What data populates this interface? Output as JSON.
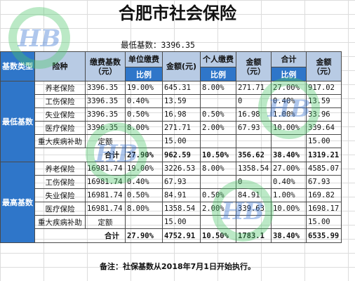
{
  "title": "合肥市社会保险",
  "min_base_label": "最低基数：3396.35",
  "header": {
    "base_type": "基数类型",
    "insurance": "险种",
    "contrib_base": "缴费基数（元）",
    "unit_contrib": "单位缴费",
    "personal_contrib": "个人缴费",
    "amount_yuan_1": "金额（元）",
    "amount_yuan_2": "金额（元）",
    "total": "合计",
    "amount_yuan_3": "金额（元）",
    "ratio_1": "比例",
    "ratio_2": "比例",
    "ratio_3": "比例",
    "amount_yuan_unit": "金额(元)"
  },
  "groups": [
    {
      "label": "最低基数",
      "rows": [
        {
          "name": "养老保险",
          "base": "3396.35",
          "unit_ratio": "19.00%",
          "unit_amt": "645.31",
          "pers_ratio": "8.00%",
          "pers_amt": "271.71",
          "tot_ratio": "27.00%",
          "tot_amt": "917.02"
        },
        {
          "name": "工伤保险",
          "base": "3396.35",
          "unit_ratio": "0.40%",
          "unit_amt": "13.59",
          "pers_ratio": "",
          "pers_amt": "0",
          "tot_ratio": "0.40%",
          "tot_amt": "13.59"
        },
        {
          "name": "失业保险",
          "base": "3396.35",
          "unit_ratio": "0.50%",
          "unit_amt": "16.98",
          "pers_ratio": "0.50%",
          "pers_amt": "16.98",
          "tot_ratio": "1.00%",
          "tot_amt": "33.96"
        },
        {
          "name": "医疗保险",
          "base": "3396.35",
          "unit_ratio": "8.00%",
          "unit_amt": "271.71",
          "pers_ratio": "2.00%",
          "pers_amt": "67.93",
          "tot_ratio": "10.00%",
          "tot_amt": "339.64"
        },
        {
          "name": "重大疾病补助",
          "base": "定额",
          "unit_ratio": "",
          "unit_amt": "15.00",
          "pers_ratio": "",
          "pers_amt": "",
          "tot_ratio": "",
          "tot_amt": "15.00"
        }
      ],
      "total": {
        "label": "合计",
        "unit_ratio": "27.90%",
        "unit_amt": "962.59",
        "pers_ratio": "10.50%",
        "pers_amt": "356.62",
        "tot_ratio": "38.40%",
        "tot_amt": "1319.21"
      }
    },
    {
      "label": "最高基数",
      "rows": [
        {
          "name": "养老保险",
          "base": "16981.74",
          "unit_ratio": "19.00%",
          "unit_amt": "3226.53",
          "pers_ratio": "8.00%",
          "pers_amt": "1358.54",
          "tot_ratio": "27.00%",
          "tot_amt": "4585.07"
        },
        {
          "name": "工伤保险",
          "base": "16981.74",
          "unit_ratio": "0.40%",
          "unit_amt": "67.93",
          "pers_ratio": "",
          "pers_amt": "0",
          "tot_ratio": "0.40%",
          "tot_amt": "67.93"
        },
        {
          "name": "失业保险",
          "base": "16981.74",
          "unit_ratio": "0.50%",
          "unit_amt": "84.91",
          "pers_ratio": "0.50%",
          "pers_amt": "84.91",
          "tot_ratio": "1.00%",
          "tot_amt": "169.82"
        },
        {
          "name": "医疗保险",
          "base": "16981.74",
          "unit_ratio": "8.00%",
          "unit_amt": "1358.54",
          "pers_ratio": "2.00%",
          "pers_amt": "339.63",
          "tot_ratio": "10.00%",
          "tot_amt": "1698.17"
        },
        {
          "name": "重大疾病补助",
          "base": "定额",
          "unit_ratio": "",
          "unit_amt": "15.00",
          "pers_ratio": "",
          "pers_amt": "",
          "tot_ratio": "",
          "tot_amt": "15.00"
        }
      ],
      "total": {
        "label": "合计",
        "unit_ratio": "27.90%",
        "unit_amt": "4752.91",
        "pers_ratio": "10.50%",
        "pers_amt": "1783.1",
        "tot_ratio": "38.40%",
        "tot_amt": "6535.99"
      }
    }
  ],
  "note": "备注：社保基数从2018年7月1日开始执行。",
  "watermark_text": "HB",
  "colors": {
    "header_light": "#b8cbe4",
    "header_blue": "#2f76c9",
    "watermark_green": "#4cc46a",
    "watermark_blue": "#2f6fd0"
  }
}
